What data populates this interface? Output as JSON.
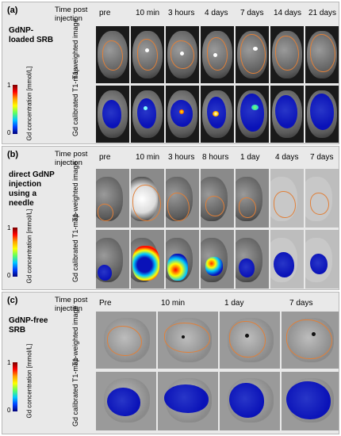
{
  "panels": [
    {
      "label": "(a)",
      "group_title": "GdNP-loaded SRB",
      "time_header": "Time post injection",
      "columns": [
        "pre",
        "10 min",
        "3 hours",
        "4 days",
        "7 days",
        "14 days",
        "21 days"
      ],
      "row1_label": "T1-weighted image",
      "row2_label": "Gd calibrated T1-map",
      "colorbar": {
        "max": "1",
        "min": "0",
        "label": "Gd concentration [mmol/L]"
      }
    },
    {
      "label": "(b)",
      "group_title": "direct GdNP injection using a needle",
      "time_header": "Time post injection",
      "columns": [
        "pre",
        "10 min",
        "3 hours",
        "8 hours",
        "1 day",
        "4 days",
        "7 days"
      ],
      "row1_label": "T1-weighted image",
      "row2_label": "Gd calibrated T1-map",
      "colorbar": {
        "max": "1",
        "min": "0",
        "label": "Gd concentration [mmol/L]"
      }
    },
    {
      "label": "(c)",
      "group_title": "GdNP-free SRB",
      "time_header": "Time post injection",
      "columns": [
        "Pre",
        "10 min",
        "1 day",
        "7 days"
      ],
      "row1_label": "T1-weighted image",
      "row2_label": "Gd calibrated T1-map",
      "colorbar": {
        "max": "1",
        "min": "0",
        "label": "Gd concentration [mmol/L]"
      }
    }
  ]
}
